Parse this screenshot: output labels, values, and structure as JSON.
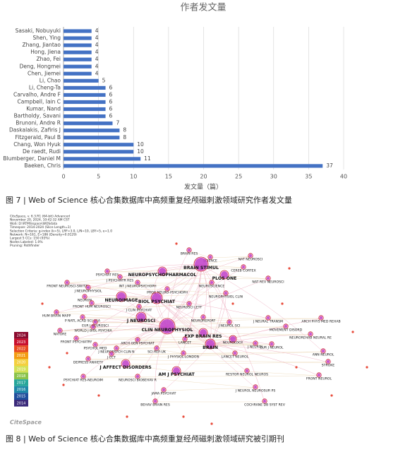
{
  "chart_data": {
    "type": "barh",
    "title": "作者发文量",
    "xlabel": "发文量（篇）",
    "categories": [
      "Sasaki, Nobuyuki",
      "Shen, Ying",
      "Zhang, Jiantao",
      "Hong, Jiena",
      "Zhao, Fei",
      "Deng, Hongmei",
      "Chen, Jiemei",
      "Li, Chao",
      "Li, Cheng-Ta",
      "Carvalho, Andre F",
      "Campbell, Iain C",
      "Kumar, Nand",
      "Bartholdy, Savani",
      "Brunoni, Andre R",
      "Daskalakis, Zafiris J",
      "Fitzgerald, Paul B",
      "Chang, Won Hyuk",
      "De raedt, Rudi",
      "Blumberger, Daniel M",
      "Baeken, Chris"
    ],
    "values": [
      4,
      4,
      4,
      4,
      4,
      4,
      4,
      5,
      6,
      6,
      6,
      6,
      6,
      7,
      8,
      8,
      10,
      10,
      11,
      37
    ],
    "color": "#4472c4",
    "xlim": [
      0,
      40
    ],
    "xticks": [
      0,
      5,
      10,
      15,
      20,
      25,
      30,
      35,
      40
    ],
    "grid": true
  },
  "figure7_caption": "图 7 | Web of Science 核心合集数据库中高频重复经颅磁刺激领域研究作者发文量",
  "network": {
    "info": [
      "CiteSpace, v. 6.3.R1 (64-bit) Advanced",
      "November 20, 2024, 10:42:32 AM CST",
      "WoS: D:\\RTMS\\space\\WOSdata",
      "Timespan: 2014-2024 (Slice Length=1)",
      "Selection Criteria: g-index (k=5), LRF=3.0, L/N=10, LBY=5, e=1.0",
      "Network: N=161, E=186 (Density=0.0129)",
      "Largest 5 CCs: 150 (93%)",
      "Nodes Labeled: 1.0%",
      "Pruning: Pathfinder"
    ],
    "legend": [
      {
        "year": "2024",
        "color": "#8b0a2e"
      },
      {
        "year": "2023",
        "color": "#c8102e"
      },
      {
        "year": "2022",
        "color": "#e8491d"
      },
      {
        "year": "2021",
        "color": "#f39c12"
      },
      {
        "year": "2020",
        "color": "#f4d03f"
      },
      {
        "year": "2019",
        "color": "#d4e157"
      },
      {
        "year": "2018",
        "color": "#8bc34a"
      },
      {
        "year": "2017",
        "color": "#26a69a"
      },
      {
        "year": "2016",
        "color": "#1e88a8"
      },
      {
        "year": "2015",
        "color": "#1f4e9c"
      },
      {
        "year": "2014",
        "color": "#3b2a7a"
      }
    ],
    "logo": "CiteSpace",
    "nodes": [
      "BRAIN RES",
      "SCIENCE",
      "NAT NEUROSCI",
      "BRAIN STIMUL",
      "CEREB CORTEX",
      "PSYCHIAT RES",
      "NEUROPSYCHOPHARMACOL",
      "PLOS ONE",
      "NAT REV NEUROSCI",
      "J PSYCHIATR RES",
      "FRONT NEUROSCI-SWITZ",
      "INT J NEUROPSYCHOPH",
      "NEUROSCIENCE",
      "J NEUROPHYSIOL",
      "PROG NEURO-PSYCHOPH",
      "NEUROPHYSIOL CLIN",
      "NEUROIMAGE",
      "BIOL PSYCHIAT",
      "NEURON",
      "FRONT HUM NEUROSCI",
      "J CLIN PSYCHIAT",
      "NEUROSCI LETT",
      "HUM BRAIN MAPP",
      "J NEUROSCI",
      "P NATL ACAD SCI USA",
      "NEUROREPORT",
      "J NEURAL TRANSM",
      "ARCH PHYS MED REHAB",
      "EUR J NEUROSCI",
      "J NEUROL SCI",
      "CLIN NEUROPHYSIOL",
      "MOVEMENT DISORD",
      "NATURE",
      "WORLD J BIOL PSYCHIA",
      "EXP BRAIN RES",
      "NEUROREHAB NEURAL RE",
      "FRONT PSYCHIATRY",
      "LANCET",
      "NEUROLOGY",
      "PSYCHOL MED",
      "J NEUROL",
      "ARCH GEN PSYCHIAT",
      "BRAIN",
      "EUR J NEUROL",
      "J NEUROPSYCH CLIN N",
      "SCI REP-UK",
      "J PHYSIOL-LONDON",
      "LANCET NEUROL",
      "J ECT",
      "ANN NEUROL",
      "DEPRESS ANXIETY",
      "STROKE",
      "J AFFECT DISORDERS",
      "AM J PSYCHIAT",
      "RESTOR NEUROL NEUROS",
      "FRONT NEUROL",
      "PSYCHIAT RES-NEUROIM",
      "NEUROSCI BIOBEHAV R",
      "J NEUROL NEUROSUR PS",
      "JAMA PSYCHIAT",
      "BEHAV BRAIN RES",
      "COCHRANE DB SYST REV"
    ]
  },
  "figure8_caption": "图 8 | Web of Science 核心合集数据库中高频重复经颅磁刺激领域研究被引期刊"
}
